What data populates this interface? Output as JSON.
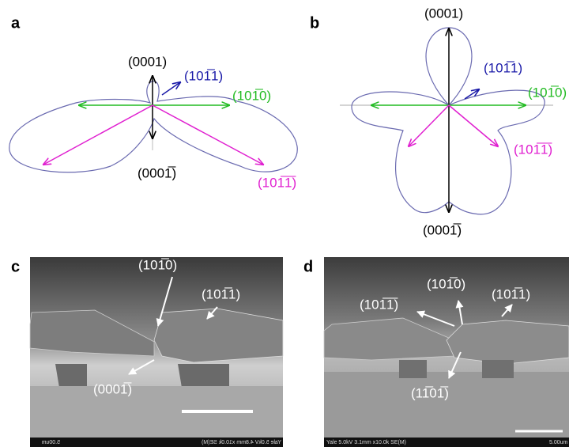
{
  "panels": [
    {
      "label": "a",
      "annotations": [
        "(0001)",
        "(101̅1)",
        "(101̅0)",
        "(0001̅)",
        "(101̅1̅)"
      ]
    },
    {
      "label": "b",
      "annotations": [
        "(0001)",
        "(101̅1)",
        "(101̅0)",
        "(101̅1̅)",
        "(0001̅)"
      ]
    },
    {
      "label": "c",
      "annotations": [
        "(101̅0)",
        "(101̅1)",
        "(0001̅)"
      ],
      "info": "Yale 5.0kV 4.8mm x10.0k SE(M)",
      "scale": "5.00um"
    },
    {
      "label": "d",
      "annotations": [
        "(101̅1̅)",
        "(101̅0)",
        "(101̅1)",
        "(11̅01̅)"
      ],
      "info": "Yale 5.0kV 3.1mm x10.0k SE(M)",
      "scale": "5.00um"
    }
  ]
}
